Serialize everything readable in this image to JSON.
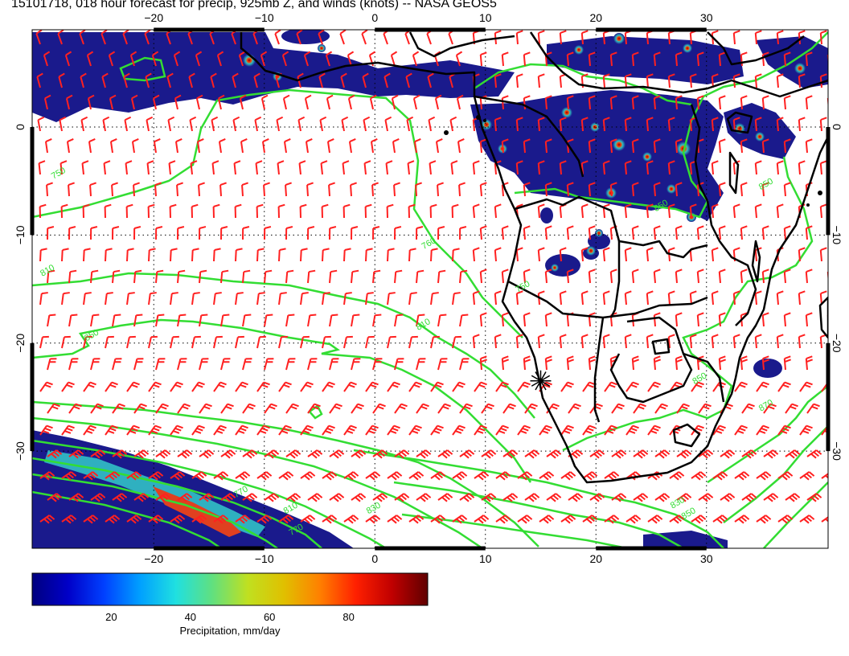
{
  "title": "15101718, 018 hour forecast for precip, 925mb Z, and winds (knots) -- NASA GEOS5",
  "map": {
    "projection": "cylindrical",
    "lon_range": [
      -31,
      41
    ],
    "lat_range": [
      9,
      -39
    ],
    "gridlines": "dotted",
    "lon_ticks": [
      {
        "value": -20,
        "label": "−20"
      },
      {
        "value": -10,
        "label": "−10"
      },
      {
        "value": 0,
        "label": "0"
      },
      {
        "value": 10,
        "label": "10"
      },
      {
        "value": 20,
        "label": "20"
      },
      {
        "value": 30,
        "label": "30"
      }
    ],
    "lat_ticks": [
      {
        "value": 0,
        "label": "0"
      },
      {
        "value": -10,
        "label": "−10"
      },
      {
        "value": -20,
        "label": "−20"
      },
      {
        "value": -30,
        "label": "−30"
      }
    ],
    "colors": {
      "coast": "#000000",
      "geopotential_contour": "#33dd33",
      "wind_barb": "#ff2020",
      "precip_low": "#1a1a8c",
      "precip_high": "#8b0000"
    },
    "marker": {
      "name": "location-star",
      "lon": 15,
      "lat": -23.5
    },
    "contour_labels": [
      {
        "text": "750",
        "lon": -28.5,
        "lat": -4.5
      },
      {
        "text": "810",
        "lon": -29.5,
        "lat": -13.5
      },
      {
        "text": "850",
        "lon": -25.5,
        "lat": -19.5
      },
      {
        "text": "760",
        "lon": 5,
        "lat": -11
      },
      {
        "text": "810",
        "lon": 4.5,
        "lat": -18.5
      },
      {
        "text": "770",
        "lon": -12,
        "lat": -34
      },
      {
        "text": "810",
        "lon": -7.5,
        "lat": -35.5
      },
      {
        "text": "830",
        "lon": 0,
        "lat": -35.5
      },
      {
        "text": "770",
        "lon": -7,
        "lat": -37.5
      },
      {
        "text": "830",
        "lon": 27.5,
        "lat": -35
      },
      {
        "text": "850",
        "lon": 28.5,
        "lat": -36
      },
      {
        "text": "750",
        "lon": 13.5,
        "lat": -15
      },
      {
        "text": "850",
        "lon": 29.5,
        "lat": -23.5
      },
      {
        "text": "870",
        "lon": 35.5,
        "lat": -26
      },
      {
        "text": "850",
        "lon": 35.5,
        "lat": -5.5
      },
      {
        "text": "850",
        "lon": 26,
        "lat": -7.5
      }
    ]
  },
  "colorbar": {
    "label": "Precipitation, mm/day",
    "range": [
      0,
      100
    ],
    "ticks": [
      {
        "value": 20,
        "label": "20"
      },
      {
        "value": 40,
        "label": "40"
      },
      {
        "value": 60,
        "label": "60"
      },
      {
        "value": 80,
        "label": "80"
      }
    ],
    "stops": [
      "#00007f",
      "#0000c8",
      "#0040ff",
      "#00a0ff",
      "#20e0e0",
      "#60e080",
      "#c0e020",
      "#e0c000",
      "#ff8000",
      "#ff2000",
      "#c00000",
      "#600000"
    ]
  }
}
